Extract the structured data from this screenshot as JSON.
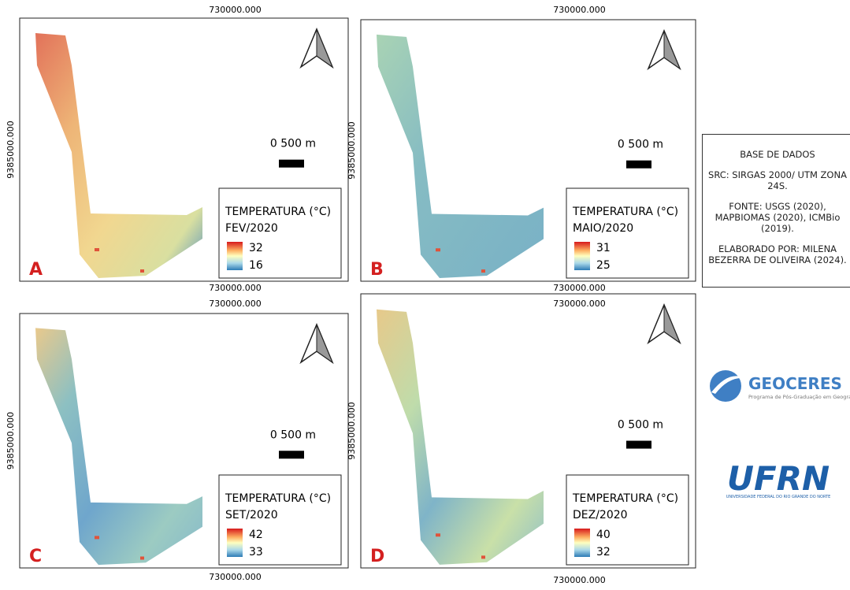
{
  "panels": [
    {
      "letter": "A",
      "top_coord": "730000.000",
      "bottom_coord": "730000.000",
      "left_coord": "9385000.000",
      "scale": "0  500 m",
      "legend_title": "TEMPERATURA (°C)",
      "period": "FEV/2020",
      "max": 32,
      "min": 16
    },
    {
      "letter": "B",
      "top_coord": "730000.000",
      "bottom_coord": "730000.000",
      "left_coord": "9385000.000",
      "scale": "0  500 m",
      "legend_title": "TEMPERATURA (°C)",
      "period": "MAIO/2020",
      "max": 31,
      "min": 25
    },
    {
      "letter": "C",
      "top_coord": "730000.000",
      "bottom_coord": "730000.000",
      "left_coord": "9385000.000",
      "scale": "0  500 m",
      "legend_title": "TEMPERATURA (°C)",
      "period": "SET/2020",
      "max": 42,
      "min": 33
    },
    {
      "letter": "D",
      "top_coord": "730000.000",
      "bottom_coord": "730000.000",
      "left_coord": "9385000.000",
      "scale": "0  500 m",
      "legend_title": "TEMPERATURA (°C)",
      "period": "DEZ/2020",
      "max": 40,
      "min": 32
    }
  ],
  "info": {
    "title": "BASE DE DADOS",
    "src": "SRC: SIRGAS 2000/ UTM ZONA 24S.",
    "source": "FONTE: USGS (2020), MAPBIOMAS (2020), ICMBio (2019).",
    "author": "ELABORADO POR: MILENA BEZERRA DE OLIVEIRA (2024)."
  },
  "logos": {
    "geoceres": "GEOCERES",
    "geoceres_sub": "Programa de Pós-Graduação em Geografia",
    "ufrn": "UFRN",
    "ufrn_sub": "UNIVERSIDADE FEDERAL DO RIO GRANDE DO NORTE"
  }
}
